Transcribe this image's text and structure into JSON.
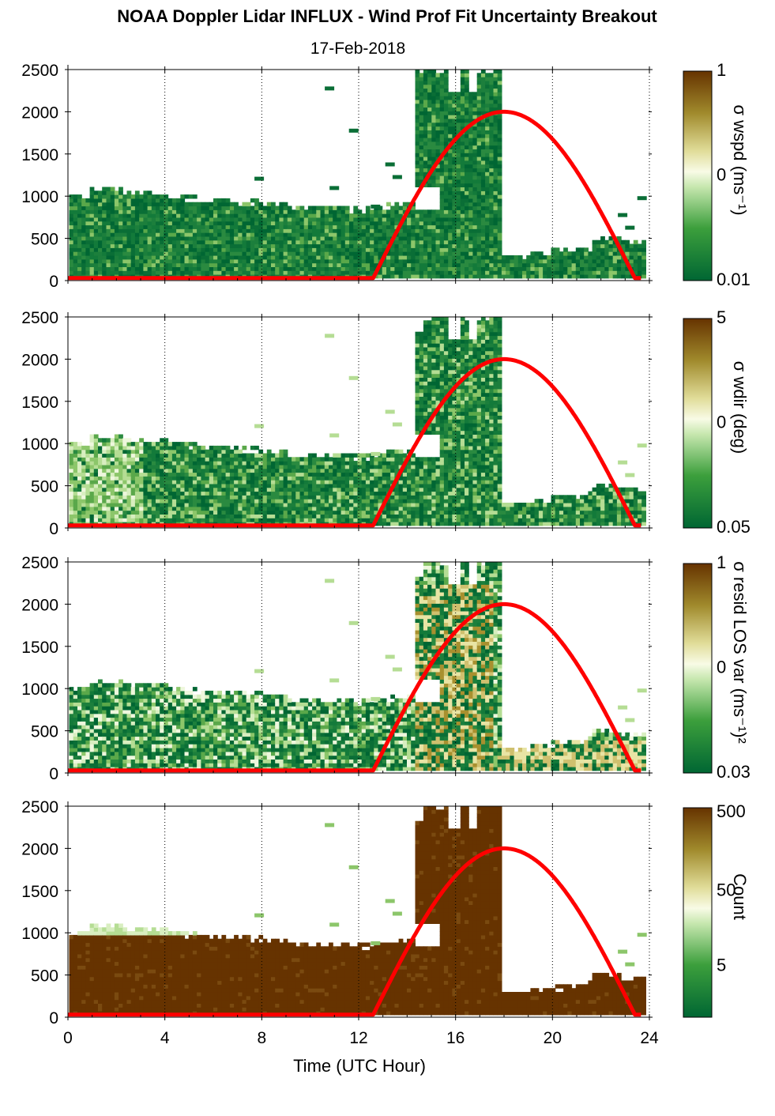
{
  "title": "NOAA Doppler Lidar INFLUX - Wind Prof Fit Uncertainty Breakout",
  "subtitle": "17-Feb-2018",
  "colors": {
    "sun_curve": "#ff0000",
    "colormap_low": "#006633",
    "colormap_mid": "#ffffff",
    "colormap_high": "#663300"
  },
  "chart_data": [
    {
      "type": "heatmap",
      "panel": "wind speed uncertainty",
      "colorbar_label": "σ wspd (ms⁻¹)",
      "colorbar_ticks": [
        "1",
        "0",
        "0.01"
      ],
      "ylim": [
        0,
        2500
      ],
      "yticks": [
        "0",
        "500",
        "1000",
        "1500",
        "2000",
        "2500"
      ],
      "xlim": [
        0,
        24
      ],
      "xticks": [
        "0",
        "4",
        "8",
        "12",
        "16",
        "20",
        "24"
      ],
      "log_scale": true,
      "grid": "vertical dotted",
      "data_top_height": [
        [
          0,
          1000
        ],
        [
          1,
          1100
        ],
        [
          4,
          1000
        ],
        [
          8,
          900
        ],
        [
          10.5,
          850
        ],
        [
          12,
          850
        ],
        [
          13.5,
          900
        ],
        [
          14.2,
          2500
        ],
        [
          17.7,
          2500
        ],
        [
          17.8,
          300
        ],
        [
          20,
          330
        ],
        [
          22,
          450
        ],
        [
          23.7,
          500
        ]
      ]
    },
    {
      "type": "heatmap",
      "panel": "wind direction uncertainty",
      "colorbar_label": "σ wdir (deg)",
      "colorbar_ticks": [
        "5",
        "0",
        "0.05"
      ],
      "ylim": [
        0,
        2500
      ],
      "yticks": [
        "0",
        "500",
        "1000",
        "1500",
        "2000",
        "2500"
      ],
      "xlim": [
        0,
        24
      ],
      "xticks": [
        "0",
        "4",
        "8",
        "12",
        "16",
        "20",
        "24"
      ],
      "log_scale": true,
      "grid": "vertical dotted"
    },
    {
      "type": "heatmap",
      "panel": "residual LOS variance",
      "colorbar_label": "σ resid LOS var (ms⁻¹)²",
      "colorbar_ticks": [
        "1",
        "0",
        "0.03"
      ],
      "ylim": [
        0,
        2500
      ],
      "yticks": [
        "0",
        "500",
        "1000",
        "1500",
        "2000",
        "2500"
      ],
      "xlim": [
        0,
        24
      ],
      "xticks": [
        "0",
        "4",
        "8",
        "12",
        "16",
        "20",
        "24"
      ],
      "log_scale": true,
      "grid": "vertical dotted"
    },
    {
      "type": "heatmap",
      "panel": "count",
      "colorbar_label": "Count",
      "colorbar_ticks": [
        "500",
        "50",
        "5"
      ],
      "ylim": [
        0,
        2500
      ],
      "yticks": [
        "0",
        "500",
        "1000",
        "1500",
        "2000",
        "2500"
      ],
      "xlim": [
        0,
        24
      ],
      "xticks": [
        "0",
        "4",
        "8",
        "12",
        "16",
        "20",
        "24"
      ],
      "xlabel": "Time (UTC Hour)",
      "log_scale": true,
      "grid": "vertical dotted"
    }
  ],
  "sun_curve": {
    "description_points": [
      [
        0,
        30
      ],
      [
        12.6,
        30
      ],
      [
        18,
        2000
      ],
      [
        23.4,
        30
      ],
      [
        23.7,
        30
      ]
    ]
  }
}
